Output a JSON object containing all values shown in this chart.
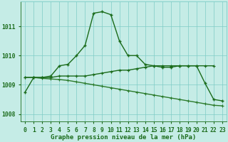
{
  "title": "Graphe pression niveau de la mer (hPa)",
  "hours": [
    0,
    1,
    2,
    3,
    4,
    5,
    6,
    7,
    8,
    9,
    10,
    11,
    12,
    13,
    14,
    15,
    16,
    17,
    18,
    19,
    20,
    21,
    22,
    23
  ],
  "line_peak": [
    1008.75,
    1009.25,
    1009.25,
    1009.3,
    1009.65,
    1009.7,
    1010.0,
    1010.35,
    1011.45,
    1011.5,
    1011.4,
    1010.5,
    1010.0,
    1010.0,
    1009.7,
    1009.65,
    1009.6,
    1009.6,
    1009.65,
    1009.65,
    1009.65,
    1009.05,
    1008.5,
    1008.45
  ],
  "line_mid": [
    1009.25,
    1009.25,
    1009.25,
    1009.25,
    1009.3,
    1009.3,
    1009.3,
    1009.3,
    1009.35,
    1009.4,
    1009.45,
    1009.5,
    1009.5,
    1009.55,
    1009.6,
    1009.65,
    1009.65,
    1009.65,
    1009.65,
    1009.65,
    1009.65,
    1009.65,
    1009.65,
    null
  ],
  "line_flat": [
    1009.25,
    1009.25,
    1009.22,
    1009.2,
    1009.18,
    1009.15,
    1009.1,
    1009.05,
    1009.0,
    1008.95,
    1008.9,
    1008.85,
    1008.8,
    1008.75,
    1008.7,
    1008.65,
    1008.6,
    1008.55,
    1008.5,
    1008.45,
    1008.4,
    1008.35,
    1008.3,
    1008.28
  ],
  "color_dark": "#1a6b1a",
  "color_mid": "#1a6b1a",
  "color_flat": "#2a7a2a",
  "bg_color": "#c5ece6",
  "grid_color": "#7eccc6",
  "axis_color": "#1a6b1a",
  "ylim": [
    1007.75,
    1011.85
  ],
  "yticks": [
    1008,
    1009,
    1010,
    1011
  ],
  "title_fontsize": 6.5,
  "tick_fontsize": 5.8,
  "linewidth": 1.0,
  "markersize_peak": 3.5,
  "markersize_mid": 3.0,
  "markersize_flat": 2.8
}
